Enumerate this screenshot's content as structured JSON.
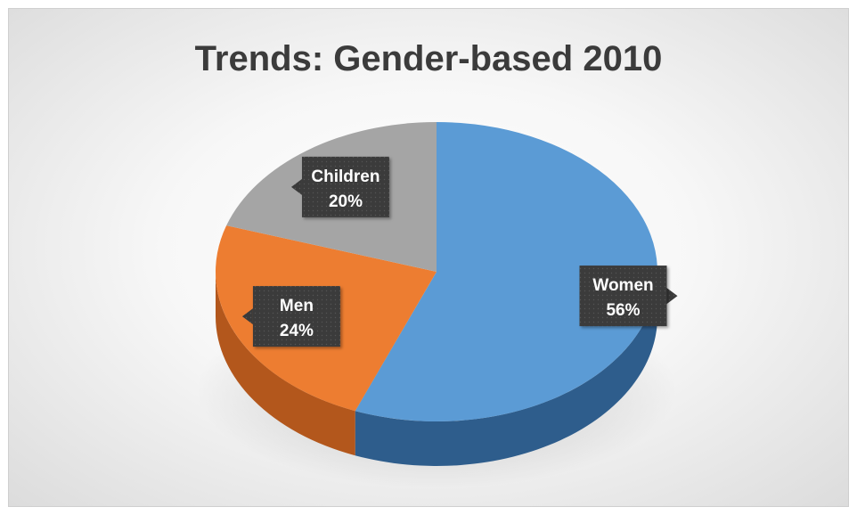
{
  "chart_data": {
    "type": "pie",
    "title": "Trends: Gender-based 2010",
    "slices": [
      {
        "label": "Women",
        "value": 56,
        "value_label": "56%",
        "color": "#5b9bd5",
        "side_color": "#2e5d8c"
      },
      {
        "label": "Men",
        "value": 24,
        "value_label": "24%",
        "color": "#ed7d31",
        "side_color": "#b3571c"
      },
      {
        "label": "Children",
        "value": 20,
        "value_label": "20%",
        "color": "#a5a5a5",
        "side_color": "#737373"
      }
    ],
    "style": "3d",
    "data_labels": "category and percentage",
    "legend": "none"
  }
}
